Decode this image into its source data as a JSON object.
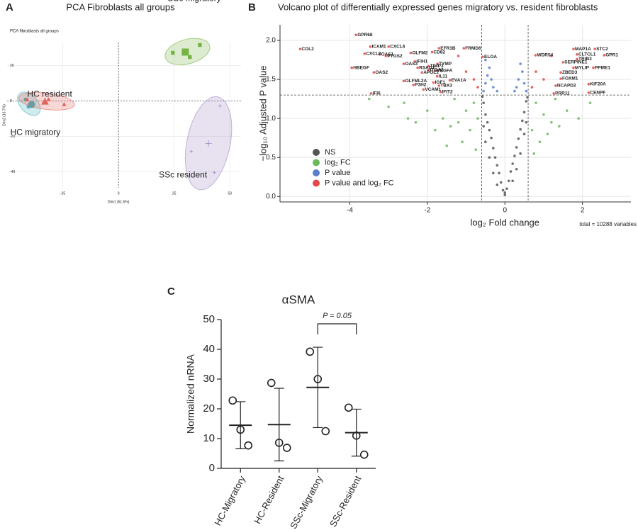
{
  "chart_data": [
    {
      "type": "scatter",
      "panel": "A",
      "title": "PCA Fibroblasts all groups",
      "subtitle": "PCA fibroblasts all groups",
      "x_label": "Dim1 (51.5%)",
      "y_label": "Dim2 (16.7%)",
      "xlim": [
        -50,
        55
      ],
      "ylim": [
        -49,
        33
      ],
      "xticks": [
        -25,
        0,
        25,
        50
      ],
      "yticks": [
        20,
        0,
        -20,
        -40
      ],
      "grid": true,
      "series": [
        {
          "name": "HC migratory",
          "color": "#45b1bd",
          "marker": "circle",
          "x": [
            -41.7,
            -38.5,
            -40.4
          ],
          "y": [
            0.8,
            -2.4,
            -3.2
          ],
          "centroid": [
            -39,
            -2
          ]
        },
        {
          "name": "HC resident",
          "color": "#e5625a",
          "marker": "triangle",
          "x": [
            -31.4,
            -24.4,
            -41
          ],
          "y": [
            0.8,
            -2,
            0.8
          ],
          "centroid": [
            -33,
            -0.4
          ]
        },
        {
          "name": "SSc migratory",
          "color": "#77b344",
          "marker": "square",
          "x": [
            24.4,
            36.5,
            32
          ],
          "y": [
            27.2,
            31.6,
            24.8
          ],
          "centroid": [
            30,
            27.6
          ]
        },
        {
          "name": "SSc resident",
          "color": "#9e87c4",
          "marker": "cross",
          "x": [
            45.5,
            32.7,
            43
          ],
          "y": [
            -2.8,
            -28.4,
            -40.4
          ],
          "centroid": [
            40.4,
            -24
          ]
        }
      ]
    },
    {
      "type": "volcano",
      "panel": "B",
      "title": "Volcano plot of differentially expressed genes migratory vs. resident fibroblasts",
      "x_label": "log₂ Fold change",
      "y_label": "−log₁₀ Adjusted P value",
      "caption": "total = 10288 variables",
      "xlim": [
        -5.8,
        3.25
      ],
      "ylim": [
        -0.07,
        2.2
      ],
      "xticks": [
        -4,
        -2,
        0,
        2
      ],
      "yticks": [
        {
          "value": 0,
          "label": "0.0"
        },
        {
          "value": 0.5,
          "label": "0.5"
        },
        {
          "value": 1,
          "label": "1.0"
        },
        {
          "value": 1.5,
          "label": "1.5"
        },
        {
          "value": 2,
          "label": "2.0"
        }
      ],
      "grid": true,
      "cutoff_x": [
        -0.6,
        0.6
      ],
      "cutoff_y": 1.3,
      "series": [
        {
          "name": "NS",
          "color": "#555555",
          "x": [
            -0.55,
            -0.5,
            -0.45,
            -0.4,
            -0.35,
            -0.3,
            -0.25,
            -0.2,
            -0.15,
            -0.1,
            -0.05,
            0,
            0.05,
            0.1,
            0.15,
            0.2,
            0.25,
            0.3,
            0.35,
            0.4,
            0.45,
            0.5,
            0.55,
            -0.58,
            0.58,
            -0.5,
            -0.4,
            -0.3,
            0.3,
            0.4,
            0.5,
            -0.2,
            0.2,
            0,
            -0.55,
            0.55
          ],
          "y": [
            1.2,
            1.05,
            0.95,
            0.85,
            0.75,
            0.62,
            0.5,
            0.4,
            0.3,
            0.18,
            0.08,
            0.02,
            0.1,
            0.2,
            0.32,
            0.42,
            0.52,
            0.63,
            0.74,
            0.86,
            0.97,
            1.08,
            1.22,
            1.28,
            1.27,
            0.7,
            0.5,
            0.3,
            0.35,
            0.55,
            0.8,
            0.15,
            0.2,
            0.05,
            0.9,
            0.95
          ]
        },
        {
          "name": "log₂ FC",
          "color": "#6cb85c",
          "x": [
            -0.8,
            -1,
            -1.2,
            -1.4,
            -1.6,
            -1.8,
            -2,
            -2.3,
            -2.6,
            -3,
            -1.1,
            -0.9,
            -1.3,
            -0.7,
            -2.5,
            -1.5,
            0.8,
            1,
            1.2,
            1.4,
            1.6,
            1.9,
            2.2,
            0.7,
            0.9,
            1.3,
            1.1,
            -0.75,
            0.75,
            -3.5
          ],
          "y": [
            1.2,
            1.1,
            0.95,
            0.9,
            1,
            0.85,
            1.1,
            0.95,
            1.2,
            1.15,
            0.7,
            0.85,
            1.25,
            1,
            1,
            0.65,
            1.2,
            1.05,
            0.95,
            0.9,
            1.1,
            1,
            1.2,
            0.85,
            0.7,
            1.25,
            0.8,
            0.6,
            0.55,
            1.25
          ]
        },
        {
          "name": "P value",
          "color": "#5b7ec9",
          "x": [
            -0.55,
            -0.5,
            -0.45,
            -0.4,
            -0.35,
            -0.3,
            0.55,
            0.5,
            0.45,
            0.4,
            0.35,
            0.3,
            -0.2,
            0.25,
            -0.5
          ],
          "y": [
            1.35,
            1.45,
            1.55,
            1.65,
            1.5,
            1.4,
            1.35,
            1.45,
            1.6,
            1.7,
            1.5,
            1.4,
            1.35,
            1.35,
            1.75
          ]
        },
        {
          "name": "P value and log₂ FC",
          "color": "#e04a4a",
          "x": [
            -3.84,
            -5.28,
            -3.62,
            -3.47,
            -3,
            -3.07,
            -3.23,
            -3.95,
            -3.38,
            -2.61,
            -2.43,
            -2.32,
            -2.25,
            -2.14,
            -2.61,
            -2.36,
            -2.1,
            -3.45,
            -1.97,
            -1.97,
            -1.75,
            -1.84,
            -1.42,
            -1.7,
            -1.66,
            -1.7,
            -1.06,
            -1.88,
            -1.74,
            -1.79,
            -0.57,
            2.56,
            2.32,
            1.77,
            1.86,
            1.86,
            2.28,
            2.16,
            2.16,
            0.79,
            1.5,
            1.77,
            1.44,
            1.44,
            1.31,
            1.26,
            -0.8,
            -1,
            -1.2,
            0.8,
            1,
            1.2,
            -0.7,
            0.7
          ],
          "y": [
            2.07,
            1.89,
            1.83,
            1.92,
            1.92,
            1.8,
            1.82,
            1.65,
            1.59,
            1.7,
            1.84,
            1.73,
            1.65,
            1.59,
            1.48,
            1.43,
            1.37,
            1.32,
            1.67,
            1.62,
            1.54,
            1.46,
            1.49,
            1.42,
            1.34,
            1.9,
            1.9,
            1.85,
            1.7,
            1.61,
            1.79,
            1.81,
            1.89,
            1.89,
            1.82,
            1.76,
            1.65,
            1.44,
            1.33,
            1.81,
            1.72,
            1.65,
            1.51,
            1.59,
            1.42,
            1.32,
            1.5,
            1.6,
            1.8,
            1.6,
            1.5,
            1.8,
            1.4,
            1.4
          ],
          "labels": [
            "GPR68",
            "COL2",
            "CXCL8",
            "ICAM1",
            "CXCL6",
            "PTGS2",
            "OAS1",
            "HBEGF",
            "OAS2",
            "OAS3",
            "OLFM2",
            "IFIH1",
            "RSAD2",
            "APOL1",
            "OLFML2A",
            "P3H2",
            "VCAM1",
            "IFI6",
            "TIMP3",
            "ITGA2",
            "IL11",
            "IGF1",
            "EVA1A",
            "TBX3",
            "IFIT2",
            "EFR3B",
            "FRMD6",
            "CD82",
            "TYMP",
            "VEGFA",
            "ELOA",
            "GPR1",
            "STC2",
            "MAP1A",
            "CLTCL1",
            "TRIB3",
            "PPME1",
            "KIF20A",
            "CENPF",
            "WDR54",
            "SERPINE1",
            "MYLIP",
            "FOXM1",
            "ZBED3",
            "NCAPD2",
            "PRR11",
            null,
            null,
            null,
            null,
            null,
            null,
            null,
            null
          ]
        }
      ]
    },
    {
      "type": "dot",
      "panel": "C",
      "title": "αSMA",
      "y_label": "Normalized nRNA",
      "ylim": [
        0,
        50
      ],
      "yticks": [
        0,
        10,
        20,
        30,
        40,
        50
      ],
      "categories": [
        "HC-Migratory",
        "HC-Resident",
        "SSc-Migratory",
        "SSc-Resident"
      ],
      "points": [
        [
          22.8,
          13,
          7.7
        ],
        [
          28.7,
          8.6,
          6.9
        ],
        [
          39.2,
          30,
          12.5
        ],
        [
          20.4,
          11,
          4.6
        ]
      ],
      "means": [
        14.5,
        14.7,
        27.2,
        12
      ],
      "sd": [
        7.9,
        12.2,
        13.5,
        7.9
      ],
      "annotation": "P = 0.05"
    }
  ]
}
